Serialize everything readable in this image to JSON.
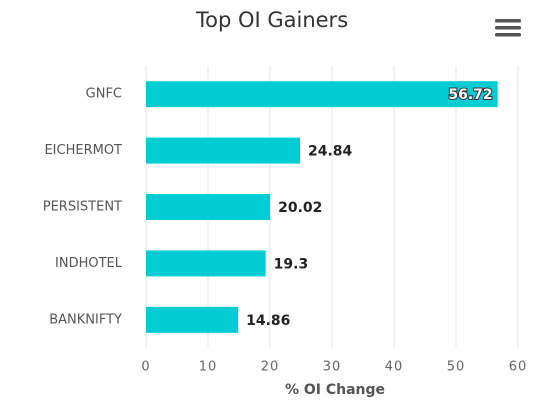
{
  "chart_data": {
    "type": "bar",
    "orientation": "horizontal",
    "title": "Top OI Gainers",
    "x_label": "% OI Change",
    "categories": [
      "GNFC",
      "EICHERMOT",
      "PERSISTENT",
      "INDHOTEL",
      "BANKNIFTY"
    ],
    "values": [
      56.72,
      24.84,
      20.02,
      19.3,
      14.86
    ],
    "color": "#00cdd3",
    "xlim": [
      0,
      60
    ],
    "xticks": [
      0,
      10,
      20,
      30,
      40,
      50,
      60
    ],
    "grid": true
  }
}
